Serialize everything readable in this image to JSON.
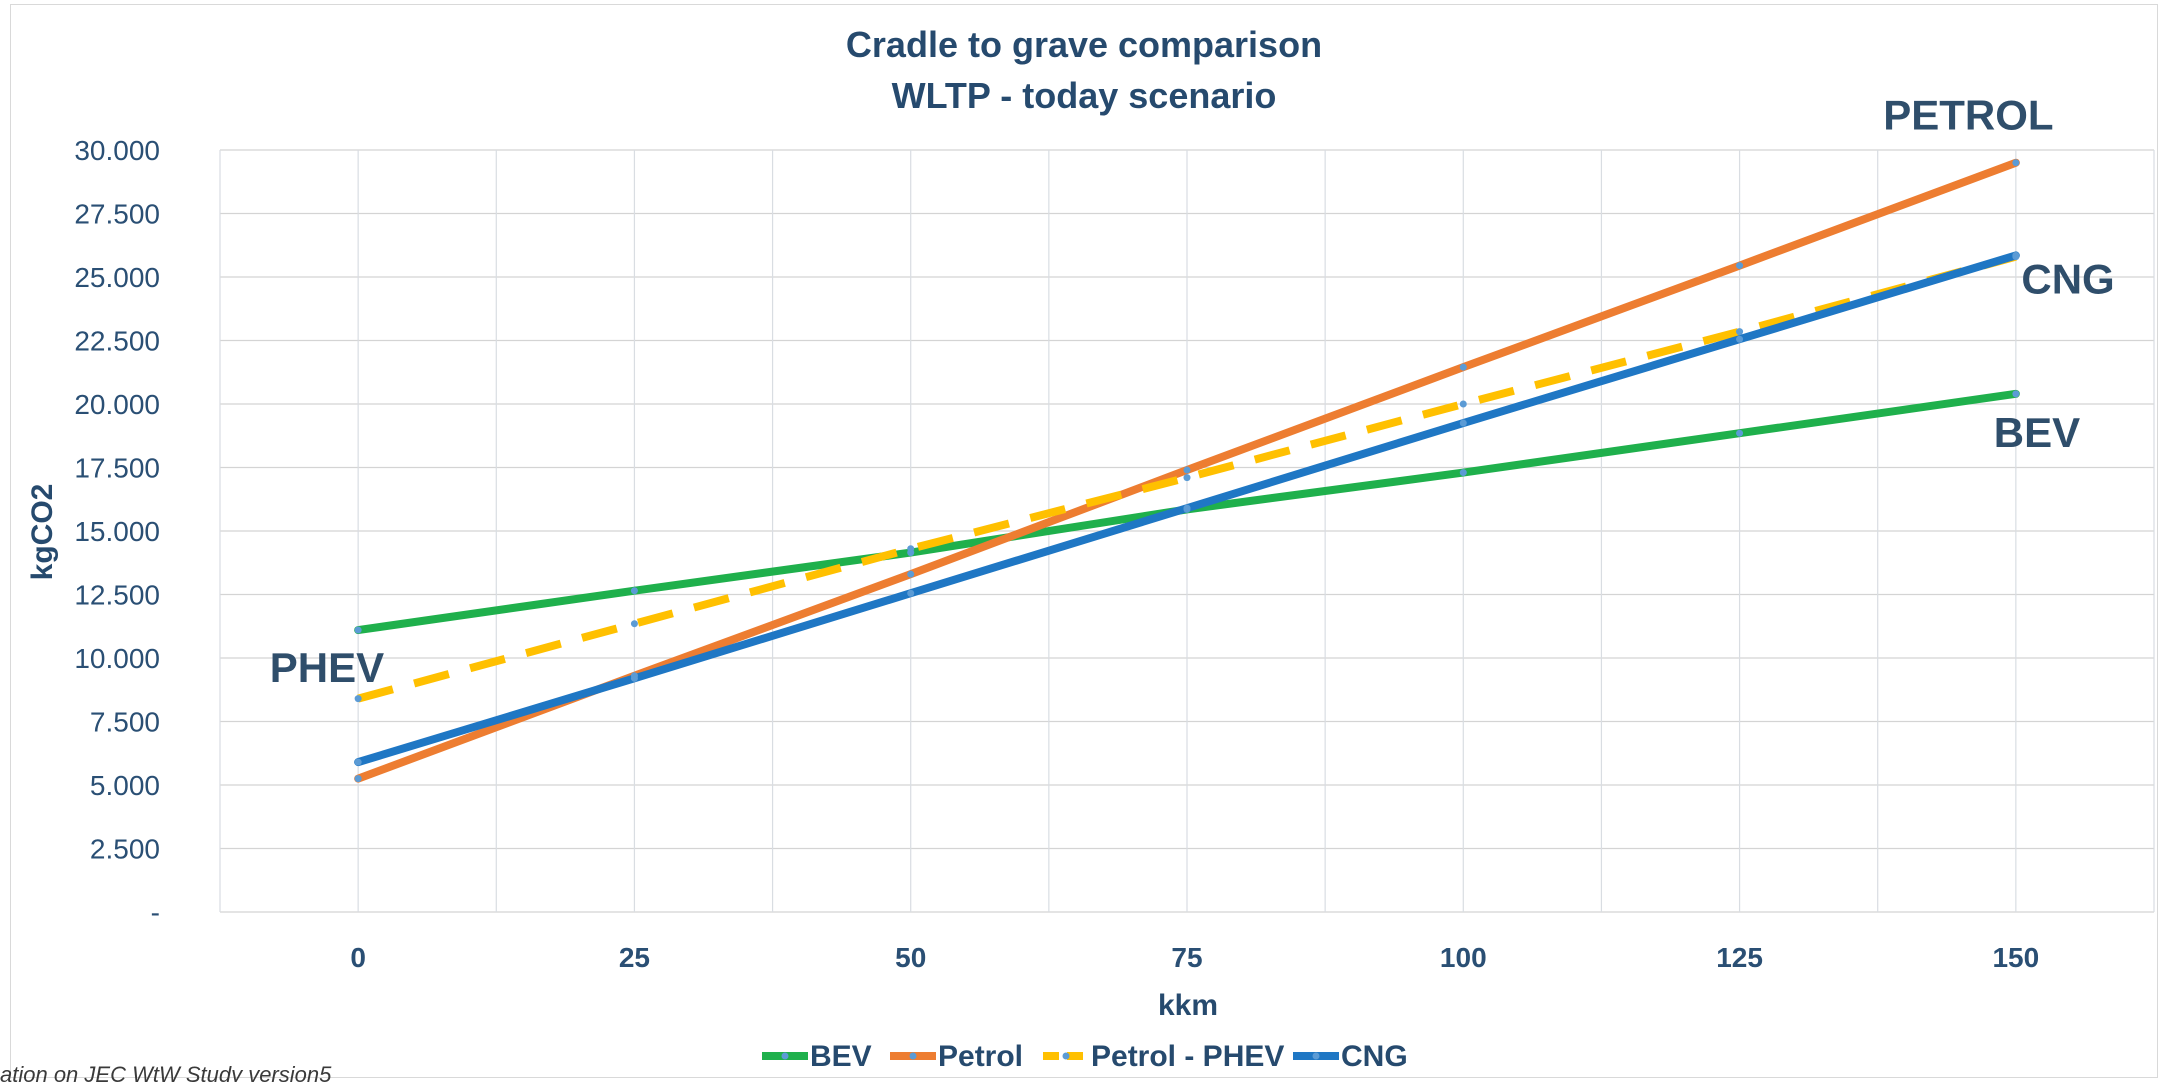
{
  "chart_data": {
    "type": "line",
    "title": "Cradle to grave comparison",
    "subtitle": "WLTP - today scenario",
    "xlabel": "kkm",
    "ylabel": "kgCO2",
    "x": [
      0,
      25,
      50,
      75,
      100,
      125,
      150
    ],
    "xlim": [
      -12.5,
      162.5
    ],
    "ylim": [
      0,
      30000
    ],
    "y_ticks": [
      0,
      2500,
      5000,
      7500,
      10000,
      12500,
      15000,
      17500,
      20000,
      22500,
      25000,
      27500,
      30000
    ],
    "y_tick_labels": [
      "-",
      "2.500",
      "5.000",
      "7.500",
      "10.000",
      "12.500",
      "15.000",
      "17.500",
      "20.000",
      "22.500",
      "25.000",
      "27.500",
      "30.000"
    ],
    "x_tick_labels": [
      "0",
      "25",
      "50",
      "75",
      "100",
      "125",
      "150"
    ],
    "grid": true,
    "legend_position": "bottom",
    "series": [
      {
        "name": "BEV",
        "color": "#1fb04c",
        "dash": false,
        "values": [
          11100,
          12650,
          14150,
          15850,
          17300,
          18850,
          20400
        ]
      },
      {
        "name": "Petrol",
        "color": "#ed7d31",
        "dash": false,
        "values": [
          5250,
          9300,
          13300,
          17400,
          21450,
          25450,
          29500
        ]
      },
      {
        "name": "Petrol - PHEV",
        "color": "#ffc000",
        "dash": true,
        "values": [
          8400,
          11350,
          14300,
          17100,
          20000,
          22850,
          25800
        ]
      },
      {
        "name": "CNG",
        "color": "#1f77c4",
        "dash": false,
        "values": [
          5900,
          9200,
          12550,
          15900,
          19250,
          22550,
          25850
        ]
      }
    ],
    "annotations": [
      {
        "text": "PETROL",
        "x": 138,
        "y": 30800
      },
      {
        "text": "CNG",
        "x": 150.5,
        "y": 24350
      },
      {
        "text": "BEV",
        "x": 148,
        "y": 18300
      },
      {
        "text": "PHEV",
        "x": -8,
        "y": 9050
      }
    ],
    "footnote": "ation on JEC WtW Study version5"
  }
}
